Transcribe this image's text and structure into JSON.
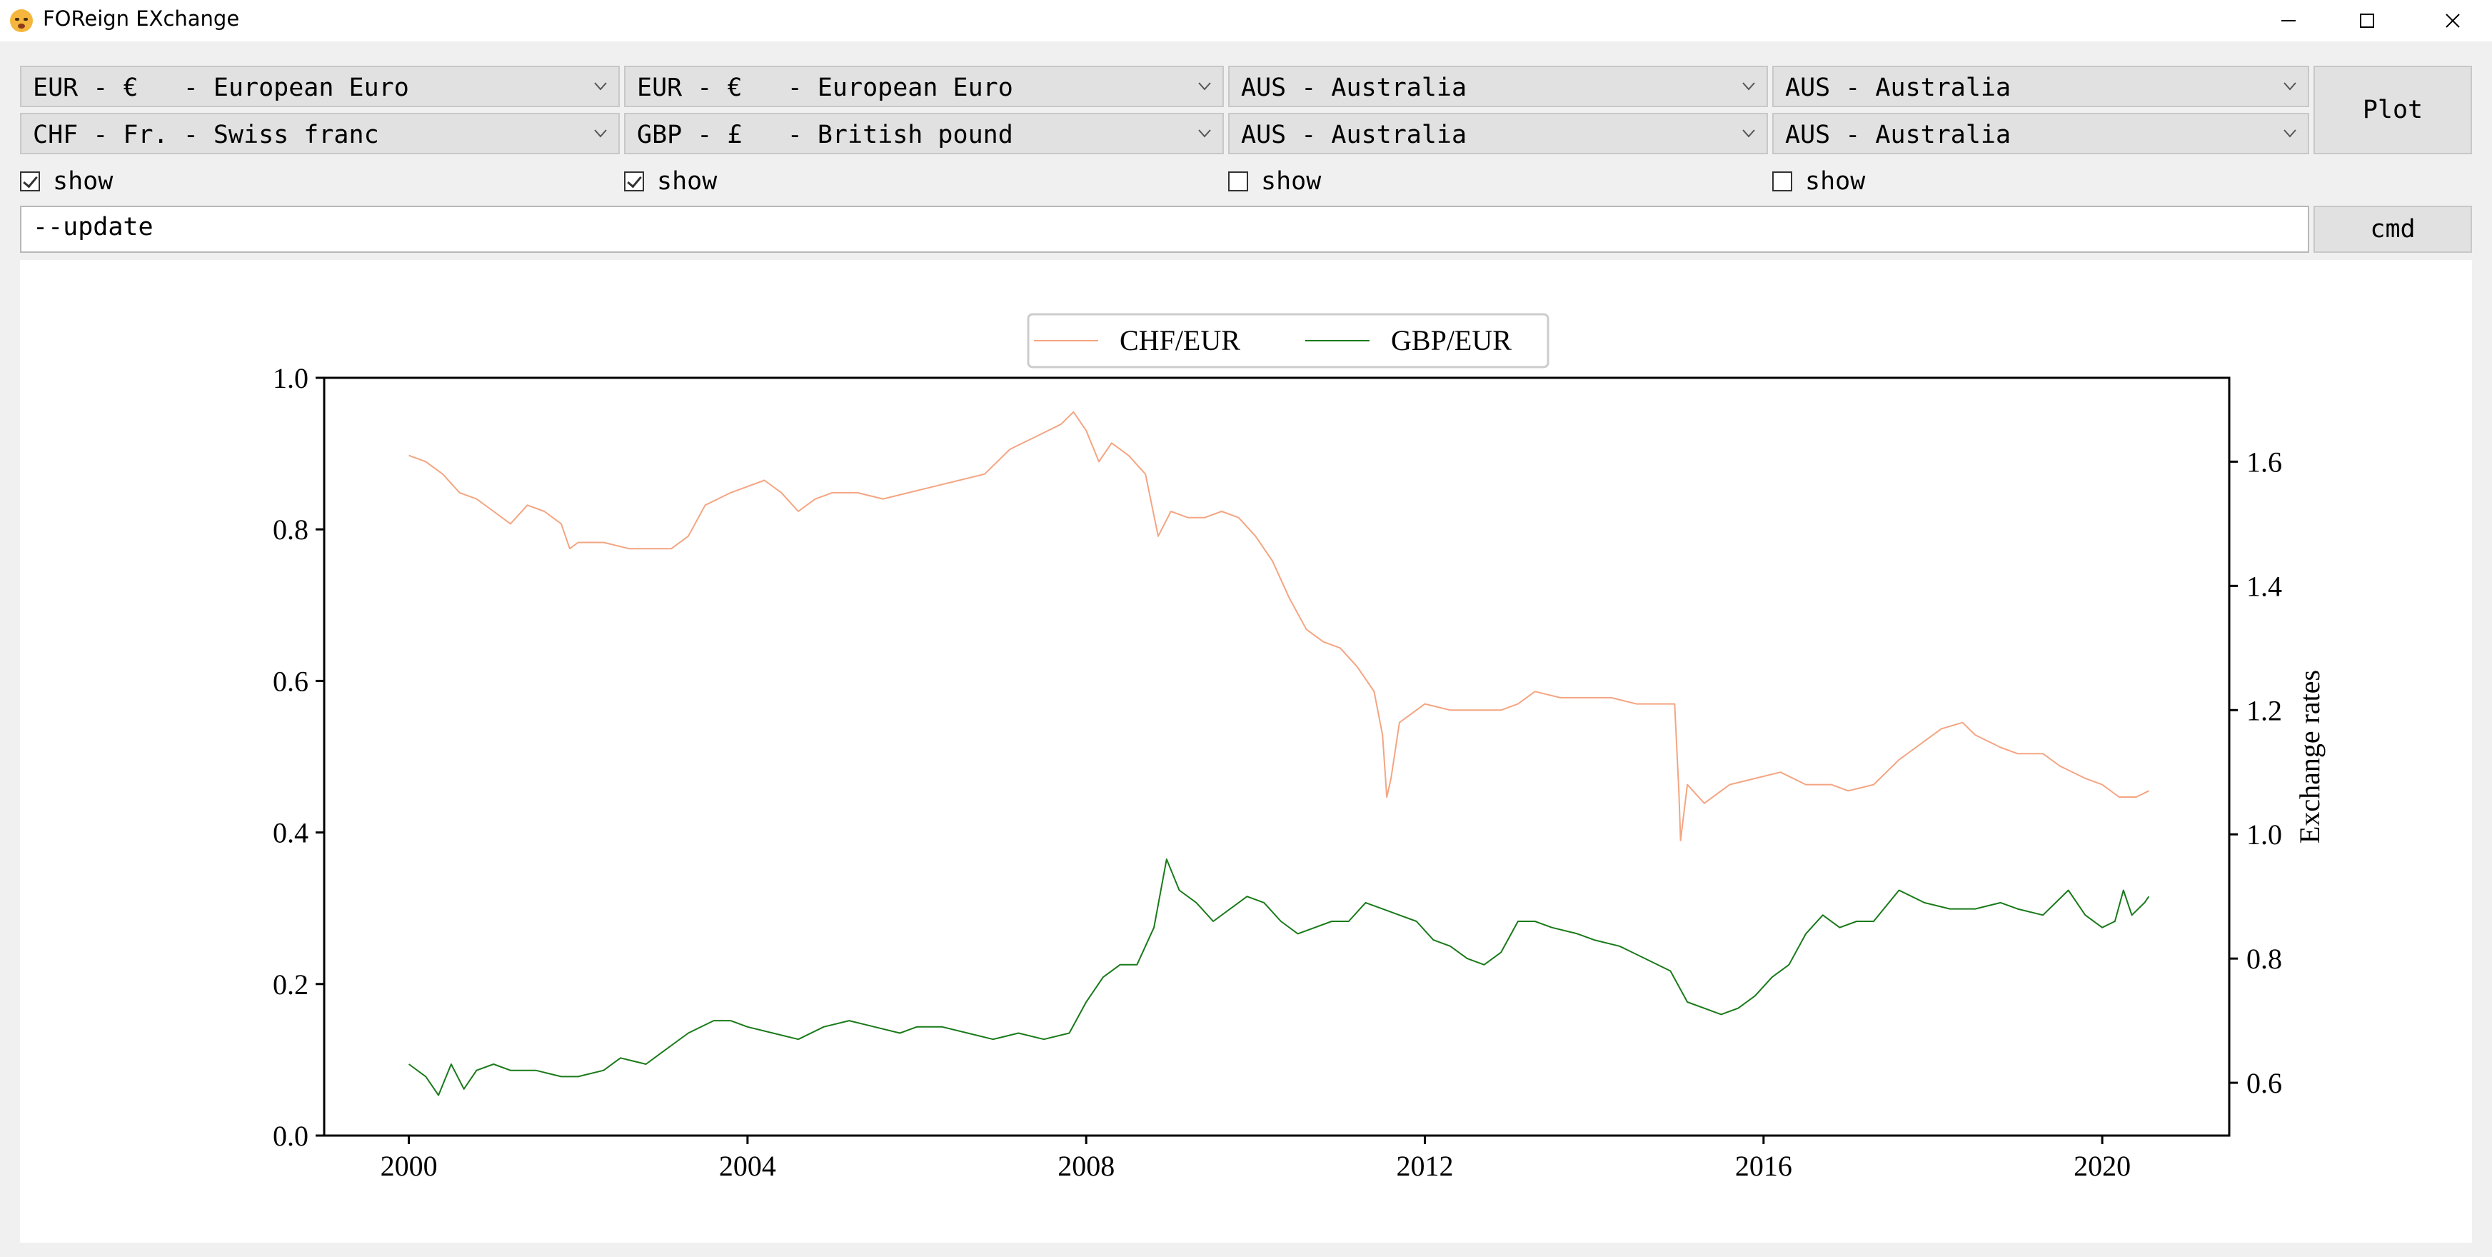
{
  "window": {
    "title": "FOReign EXchange",
    "icon": "astonished-face-icon"
  },
  "selectors": {
    "row1": [
      "EUR - €   - European Euro",
      "EUR - €   - European Euro",
      "AUS - Australia",
      "AUS - Australia"
    ],
    "row2": [
      "CHF - Fr. - Swiss franc",
      "GBP - £   - British pound",
      "AUS - Australia",
      "AUS - Australia"
    ]
  },
  "show": [
    {
      "label": "show",
      "checked": true
    },
    {
      "label": "show",
      "checked": true
    },
    {
      "label": "show",
      "checked": false
    },
    {
      "label": "show",
      "checked": false
    }
  ],
  "buttons": {
    "plot": "Plot",
    "cmd": "cmd"
  },
  "command": {
    "value": "--update"
  },
  "chart_data": {
    "type": "line",
    "x_ticks": [
      "2000",
      "2004",
      "2008",
      "2012",
      "2016",
      "2020"
    ],
    "xlim": [
      1999,
      2021.5
    ],
    "left_ticks": [
      "0.0",
      "0.2",
      "0.4",
      "0.6",
      "0.8",
      "1.0"
    ],
    "left_ylim": [
      0,
      1
    ],
    "right_ticks": [
      "0.6",
      "0.8",
      "1.0",
      "1.2",
      "1.4",
      "1.6"
    ],
    "right_ylim": [
      0.515,
      1.735
    ],
    "right_ylabel": "Exchange rates",
    "legend_position": "top-center, above plot",
    "series": [
      {
        "name": "CHF/EUR",
        "color": "#f4a582",
        "axis": "right",
        "points": [
          [
            2000.0,
            1.61
          ],
          [
            2000.2,
            1.6
          ],
          [
            2000.4,
            1.58
          ],
          [
            2000.6,
            1.55
          ],
          [
            2000.8,
            1.54
          ],
          [
            2001.0,
            1.52
          ],
          [
            2001.2,
            1.5
          ],
          [
            2001.4,
            1.53
          ],
          [
            2001.6,
            1.52
          ],
          [
            2001.8,
            1.5
          ],
          [
            2001.9,
            1.46
          ],
          [
            2002.0,
            1.47
          ],
          [
            2002.3,
            1.47
          ],
          [
            2002.6,
            1.46
          ],
          [
            2002.9,
            1.46
          ],
          [
            2003.1,
            1.46
          ],
          [
            2003.3,
            1.48
          ],
          [
            2003.5,
            1.53
          ],
          [
            2003.8,
            1.55
          ],
          [
            2004.0,
            1.56
          ],
          [
            2004.2,
            1.57
          ],
          [
            2004.4,
            1.55
          ],
          [
            2004.6,
            1.52
          ],
          [
            2004.8,
            1.54
          ],
          [
            2005.0,
            1.55
          ],
          [
            2005.3,
            1.55
          ],
          [
            2005.6,
            1.54
          ],
          [
            2005.9,
            1.55
          ],
          [
            2006.2,
            1.56
          ],
          [
            2006.5,
            1.57
          ],
          [
            2006.8,
            1.58
          ],
          [
            2007.1,
            1.62
          ],
          [
            2007.4,
            1.64
          ],
          [
            2007.7,
            1.66
          ],
          [
            2007.85,
            1.68
          ],
          [
            2008.0,
            1.65
          ],
          [
            2008.15,
            1.6
          ],
          [
            2008.3,
            1.63
          ],
          [
            2008.5,
            1.61
          ],
          [
            2008.7,
            1.58
          ],
          [
            2008.85,
            1.48
          ],
          [
            2009.0,
            1.52
          ],
          [
            2009.2,
            1.51
          ],
          [
            2009.4,
            1.51
          ],
          [
            2009.6,
            1.52
          ],
          [
            2009.8,
            1.51
          ],
          [
            2010.0,
            1.48
          ],
          [
            2010.2,
            1.44
          ],
          [
            2010.4,
            1.38
          ],
          [
            2010.6,
            1.33
          ],
          [
            2010.8,
            1.31
          ],
          [
            2011.0,
            1.3
          ],
          [
            2011.2,
            1.27
          ],
          [
            2011.4,
            1.23
          ],
          [
            2011.5,
            1.16
          ],
          [
            2011.55,
            1.06
          ],
          [
            2011.6,
            1.09
          ],
          [
            2011.7,
            1.18
          ],
          [
            2012.0,
            1.21
          ],
          [
            2012.3,
            1.2
          ],
          [
            2012.6,
            1.2
          ],
          [
            2012.9,
            1.2
          ],
          [
            2013.1,
            1.21
          ],
          [
            2013.3,
            1.23
          ],
          [
            2013.6,
            1.22
          ],
          [
            2013.9,
            1.22
          ],
          [
            2014.2,
            1.22
          ],
          [
            2014.5,
            1.21
          ],
          [
            2014.8,
            1.21
          ],
          [
            2014.95,
            1.21
          ],
          [
            2015.0,
            1.07
          ],
          [
            2015.02,
            0.99
          ],
          [
            2015.1,
            1.08
          ],
          [
            2015.3,
            1.05
          ],
          [
            2015.6,
            1.08
          ],
          [
            2015.9,
            1.09
          ],
          [
            2016.2,
            1.1
          ],
          [
            2016.5,
            1.08
          ],
          [
            2016.8,
            1.08
          ],
          [
            2017.0,
            1.07
          ],
          [
            2017.3,
            1.08
          ],
          [
            2017.6,
            1.12
          ],
          [
            2017.9,
            1.15
          ],
          [
            2018.1,
            1.17
          ],
          [
            2018.35,
            1.18
          ],
          [
            2018.5,
            1.16
          ],
          [
            2018.8,
            1.14
          ],
          [
            2019.0,
            1.13
          ],
          [
            2019.3,
            1.13
          ],
          [
            2019.5,
            1.11
          ],
          [
            2019.8,
            1.09
          ],
          [
            2020.0,
            1.08
          ],
          [
            2020.2,
            1.06
          ],
          [
            2020.4,
            1.06
          ],
          [
            2020.55,
            1.07
          ]
        ]
      },
      {
        "name": "GBP/EUR",
        "color": "#1a7a1a",
        "axis": "right",
        "points": [
          [
            2000.0,
            0.63
          ],
          [
            2000.2,
            0.61
          ],
          [
            2000.35,
            0.58
          ],
          [
            2000.5,
            0.63
          ],
          [
            2000.65,
            0.59
          ],
          [
            2000.8,
            0.62
          ],
          [
            2001.0,
            0.63
          ],
          [
            2001.2,
            0.62
          ],
          [
            2001.5,
            0.62
          ],
          [
            2001.8,
            0.61
          ],
          [
            2002.0,
            0.61
          ],
          [
            2002.3,
            0.62
          ],
          [
            2002.5,
            0.64
          ],
          [
            2002.8,
            0.63
          ],
          [
            2003.0,
            0.65
          ],
          [
            2003.3,
            0.68
          ],
          [
            2003.6,
            0.7
          ],
          [
            2003.8,
            0.7
          ],
          [
            2004.0,
            0.69
          ],
          [
            2004.3,
            0.68
          ],
          [
            2004.6,
            0.67
          ],
          [
            2004.9,
            0.69
          ],
          [
            2005.2,
            0.7
          ],
          [
            2005.5,
            0.69
          ],
          [
            2005.8,
            0.68
          ],
          [
            2006.0,
            0.69
          ],
          [
            2006.3,
            0.69
          ],
          [
            2006.6,
            0.68
          ],
          [
            2006.9,
            0.67
          ],
          [
            2007.2,
            0.68
          ],
          [
            2007.5,
            0.67
          ],
          [
            2007.8,
            0.68
          ],
          [
            2008.0,
            0.73
          ],
          [
            2008.2,
            0.77
          ],
          [
            2008.4,
            0.79
          ],
          [
            2008.6,
            0.79
          ],
          [
            2008.8,
            0.85
          ],
          [
            2008.95,
            0.96
          ],
          [
            2009.1,
            0.91
          ],
          [
            2009.3,
            0.89
          ],
          [
            2009.5,
            0.86
          ],
          [
            2009.7,
            0.88
          ],
          [
            2009.9,
            0.9
          ],
          [
            2010.1,
            0.89
          ],
          [
            2010.3,
            0.86
          ],
          [
            2010.5,
            0.84
          ],
          [
            2010.7,
            0.85
          ],
          [
            2010.9,
            0.86
          ],
          [
            2011.1,
            0.86
          ],
          [
            2011.3,
            0.89
          ],
          [
            2011.5,
            0.88
          ],
          [
            2011.7,
            0.87
          ],
          [
            2011.9,
            0.86
          ],
          [
            2012.1,
            0.83
          ],
          [
            2012.3,
            0.82
          ],
          [
            2012.5,
            0.8
          ],
          [
            2012.7,
            0.79
          ],
          [
            2012.9,
            0.81
          ],
          [
            2013.1,
            0.86
          ],
          [
            2013.3,
            0.86
          ],
          [
            2013.5,
            0.85
          ],
          [
            2013.8,
            0.84
          ],
          [
            2014.0,
            0.83
          ],
          [
            2014.3,
            0.82
          ],
          [
            2014.6,
            0.8
          ],
          [
            2014.9,
            0.78
          ],
          [
            2015.1,
            0.73
          ],
          [
            2015.3,
            0.72
          ],
          [
            2015.5,
            0.71
          ],
          [
            2015.7,
            0.72
          ],
          [
            2015.9,
            0.74
          ],
          [
            2016.1,
            0.77
          ],
          [
            2016.3,
            0.79
          ],
          [
            2016.5,
            0.84
          ],
          [
            2016.7,
            0.87
          ],
          [
            2016.9,
            0.85
          ],
          [
            2017.1,
            0.86
          ],
          [
            2017.3,
            0.86
          ],
          [
            2017.6,
            0.91
          ],
          [
            2017.9,
            0.89
          ],
          [
            2018.2,
            0.88
          ],
          [
            2018.5,
            0.88
          ],
          [
            2018.8,
            0.89
          ],
          [
            2019.0,
            0.88
          ],
          [
            2019.3,
            0.87
          ],
          [
            2019.6,
            0.91
          ],
          [
            2019.8,
            0.87
          ],
          [
            2020.0,
            0.85
          ],
          [
            2020.15,
            0.86
          ],
          [
            2020.25,
            0.91
          ],
          [
            2020.35,
            0.87
          ],
          [
            2020.5,
            0.89
          ],
          [
            2020.55,
            0.9
          ]
        ]
      }
    ]
  }
}
